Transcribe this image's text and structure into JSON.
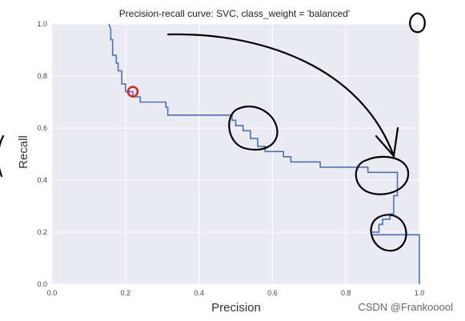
{
  "chart_data": {
    "type": "line",
    "title": "Precision-recall curve: SVC, class_weight = 'balanced'",
    "xlabel": "Precision",
    "ylabel": "Recall",
    "xlim": [
      0.0,
      1.0
    ],
    "ylim": [
      0.0,
      1.0
    ],
    "xticks": [
      "0.0",
      "0.2",
      "0.4",
      "0.6",
      "0.8",
      "1.0"
    ],
    "yticks": [
      "0.0",
      "0.2",
      "0.4",
      "0.6",
      "0.8",
      "1.0"
    ],
    "grid": true,
    "background": "#eaeaf2",
    "series": [
      {
        "color": "#4c72b0",
        "points": [
          [
            0.155,
            1.0
          ],
          [
            0.16,
            0.98
          ],
          [
            0.16,
            0.94
          ],
          [
            0.165,
            0.94
          ],
          [
            0.165,
            0.88
          ],
          [
            0.175,
            0.88
          ],
          [
            0.175,
            0.85
          ],
          [
            0.18,
            0.85
          ],
          [
            0.18,
            0.82
          ],
          [
            0.19,
            0.82
          ],
          [
            0.19,
            0.77
          ],
          [
            0.2,
            0.77
          ],
          [
            0.2,
            0.74
          ],
          [
            0.22,
            0.74
          ],
          [
            0.22,
            0.72
          ],
          [
            0.24,
            0.72
          ],
          [
            0.24,
            0.7
          ],
          [
            0.31,
            0.7
          ],
          [
            0.31,
            0.68
          ],
          [
            0.315,
            0.68
          ],
          [
            0.315,
            0.65
          ],
          [
            0.49,
            0.65
          ],
          [
            0.49,
            0.63
          ],
          [
            0.5,
            0.63
          ],
          [
            0.5,
            0.61
          ],
          [
            0.52,
            0.61
          ],
          [
            0.52,
            0.59
          ],
          [
            0.54,
            0.59
          ],
          [
            0.54,
            0.56
          ],
          [
            0.56,
            0.56
          ],
          [
            0.56,
            0.53
          ],
          [
            0.58,
            0.53
          ],
          [
            0.58,
            0.51
          ],
          [
            0.63,
            0.51
          ],
          [
            0.63,
            0.49
          ],
          [
            0.65,
            0.49
          ],
          [
            0.65,
            0.47
          ],
          [
            0.73,
            0.47
          ],
          [
            0.73,
            0.45
          ],
          [
            0.86,
            0.45
          ],
          [
            0.86,
            0.43
          ],
          [
            0.94,
            0.43
          ],
          [
            0.94,
            0.34
          ],
          [
            0.93,
            0.34
          ],
          [
            0.93,
            0.27
          ],
          [
            0.92,
            0.27
          ],
          [
            0.92,
            0.25
          ],
          [
            0.9,
            0.25
          ],
          [
            0.9,
            0.23
          ],
          [
            0.89,
            0.23
          ],
          [
            0.89,
            0.2
          ],
          [
            0.87,
            0.2
          ],
          [
            0.87,
            0.19
          ],
          [
            1.0,
            0.19
          ],
          [
            1.0,
            0.0
          ]
        ]
      }
    ],
    "marker": {
      "x": 0.22,
      "y": 0.74,
      "color": "#d62728"
    }
  },
  "watermark": "CSDN @Frankooool",
  "annotation_color": "#000000"
}
